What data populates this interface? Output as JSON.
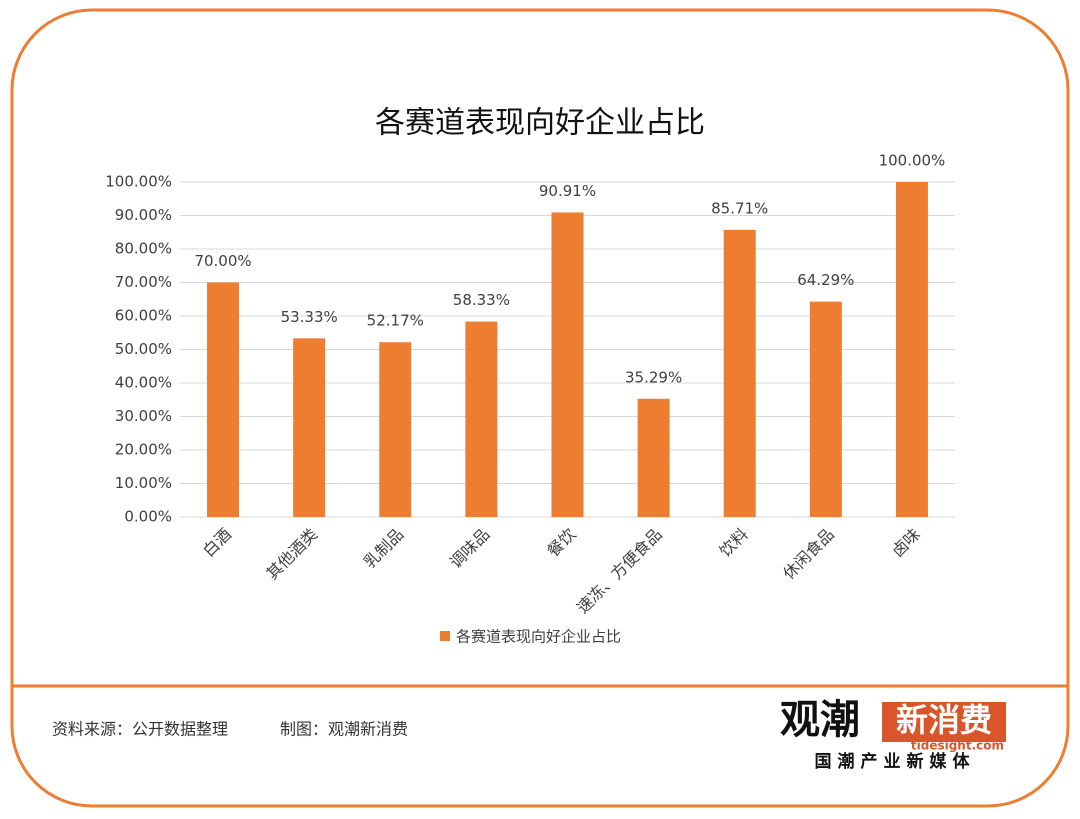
{
  "chart_data": {
    "type": "bar",
    "title": "各赛道表现向好企业占比",
    "categories": [
      "白酒",
      "其他酒类",
      "乳制品",
      "调味品",
      "餐饮",
      "速冻、方便食品",
      "饮料",
      "休闲食品",
      "卤味"
    ],
    "series": [
      {
        "name": "各赛道表现向好企业占比",
        "color": "#ed7d31",
        "values": [
          70.0,
          53.33,
          52.17,
          58.33,
          90.91,
          35.29,
          85.71,
          64.29,
          100.0
        ],
        "value_labels": [
          "70.00%",
          "53.33%",
          "52.17%",
          "58.33%",
          "90.91%",
          "35.29%",
          "85.71%",
          "64.29%",
          "100.00%"
        ]
      }
    ],
    "ylim": [
      0,
      100
    ],
    "yticks": [
      {
        "value": 0,
        "label": "0.00%"
      },
      {
        "value": 10,
        "label": "10.00%"
      },
      {
        "value": 20,
        "label": "20.00%"
      },
      {
        "value": 30,
        "label": "30.00%"
      },
      {
        "value": 40,
        "label": "40.00%"
      },
      {
        "value": 50,
        "label": "50.00%"
      },
      {
        "value": 60,
        "label": "60.00%"
      },
      {
        "value": 70,
        "label": "70.00%"
      },
      {
        "value": 80,
        "label": "80.00%"
      },
      {
        "value": 90,
        "label": "90.00%"
      },
      {
        "value": 100,
        "label": "100.00%"
      }
    ],
    "grid": true,
    "legend": "bottom"
  },
  "footer": {
    "source": "资料来源：公开数据整理",
    "credit": "制图：观潮新消费"
  },
  "logo": {
    "name": "观潮",
    "brand": "新消费",
    "url": "tidesight.com",
    "slogan": "国潮产业新媒体"
  }
}
